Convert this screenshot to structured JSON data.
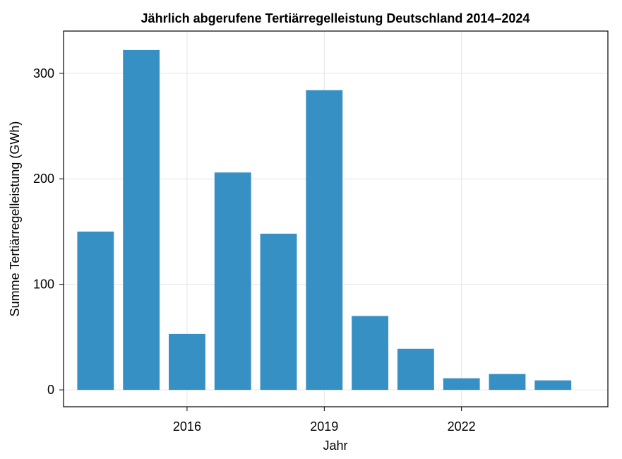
{
  "chart_data": {
    "type": "bar",
    "title": "Jährlich abgerufene Tertiärregelleistung Deutschland 2014–2024",
    "xlabel": "Jahr",
    "ylabel": "Summe Tertiärregelleistung (GWh)",
    "categories": [
      "2014",
      "2015",
      "2016",
      "2017",
      "2018",
      "2019",
      "2020",
      "2021",
      "2022",
      "2023",
      "2024"
    ],
    "values": [
      150,
      322,
      53,
      206,
      148,
      284,
      70,
      39,
      11,
      15,
      9
    ],
    "x_ticks": [
      "2016",
      "2019",
      "2022"
    ],
    "y_ticks": [
      0,
      100,
      200,
      300
    ],
    "ylim": [
      -16,
      340
    ],
    "xlim": [
      2013.3,
      2025.2
    ],
    "grid": true,
    "bar_color": "#3690c4",
    "grid_color": "#e6e6e6",
    "frame_color": "#000000"
  }
}
